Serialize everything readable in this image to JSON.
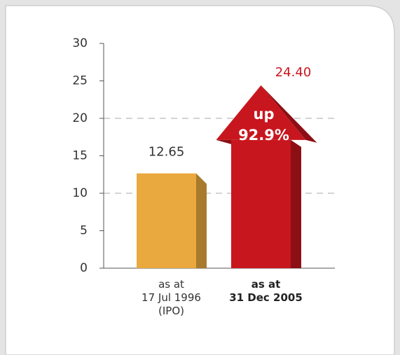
{
  "chart_data": {
    "type": "bar",
    "categories": [
      "as at\n17 Jul 1996\n(IPO)",
      "as at\n31 Dec 2005"
    ],
    "values": [
      12.65,
      24.4
    ],
    "value_labels": [
      "12.65",
      "24.40"
    ],
    "colors": [
      "#e9a93f",
      "#c8161e"
    ],
    "annotations": [
      "up",
      "92.9%"
    ],
    "ylim": [
      0,
      30
    ],
    "yticks": [
      0,
      5,
      10,
      15,
      20,
      25,
      30
    ],
    "grid": true
  }
}
